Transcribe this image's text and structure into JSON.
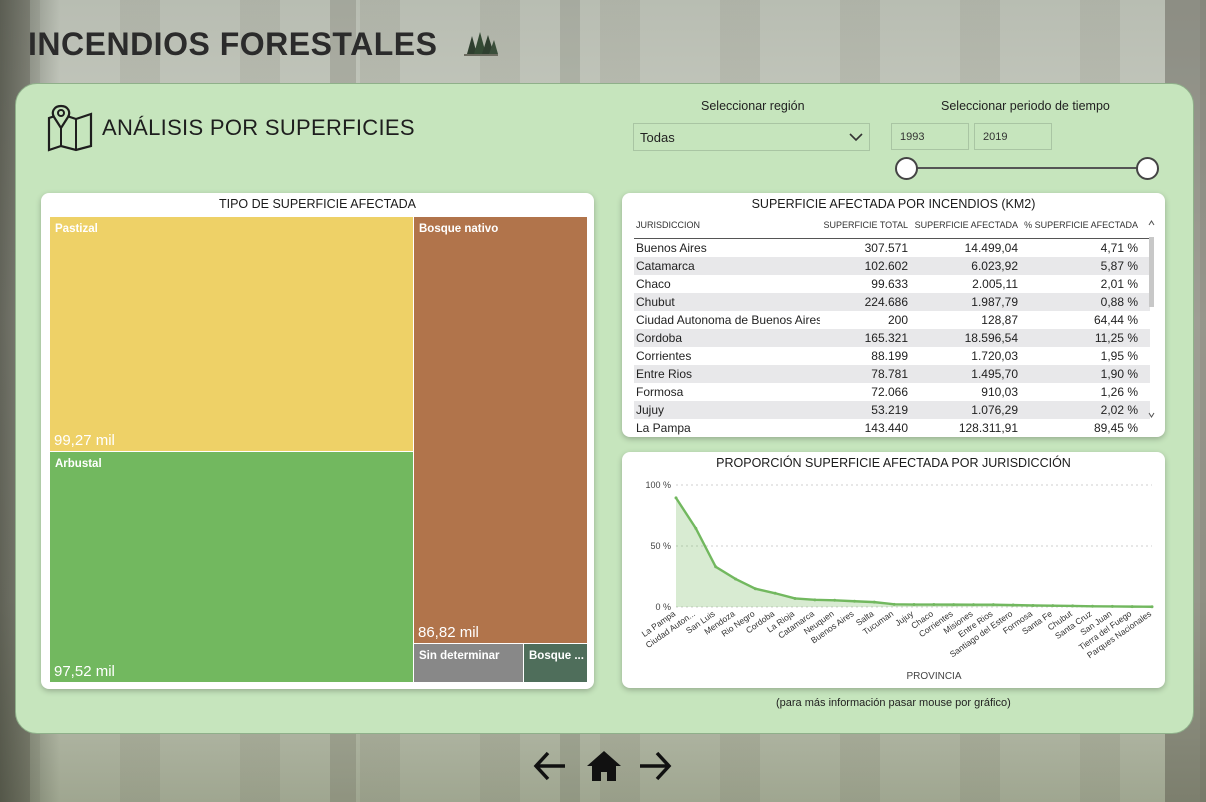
{
  "header": {
    "title": "INCENDIOS FORESTALES",
    "icon": "pine-trees-icon"
  },
  "section": {
    "title": "ANÁLISIS POR SUPERFICIES",
    "icon": "map-pin-icon"
  },
  "filters": {
    "region_label": "Seleccionar región",
    "region_value": "Todas",
    "period_label": "Seleccionar periodo de tiempo",
    "period_start": "1993",
    "period_end": "2019"
  },
  "treemap": {
    "title": "TIPO DE SUPERFICIE AFECTADA",
    "items": [
      {
        "label": "Pastizal",
        "value": "99,27 mil",
        "color": "#eed167"
      },
      {
        "label": "Arbustal",
        "value": "97,52 mil",
        "color": "#72b85f"
      },
      {
        "label": "Bosque nativo",
        "value": "86,82 mil",
        "color": "#b1744b"
      },
      {
        "label": "Sin determinar",
        "value": "",
        "color": "#888888"
      },
      {
        "label": "Bosque ...",
        "value": "",
        "color": "#4f6e5b"
      }
    ]
  },
  "table": {
    "title": "SUPERFICIE AFECTADA POR INCENDIOS (KM2)",
    "columns": [
      "JURISDICCION",
      "SUPERFICIE TOTAL",
      "SUPERFICIE AFECTADA",
      "% SUPERFICIE AFECTADA"
    ],
    "rows": [
      [
        "Buenos Aires",
        "307.571",
        "14.499,04",
        "4,71 %"
      ],
      [
        "Catamarca",
        "102.602",
        "6.023,92",
        "5,87 %"
      ],
      [
        "Chaco",
        "99.633",
        "2.005,11",
        "2,01 %"
      ],
      [
        "Chubut",
        "224.686",
        "1.987,79",
        "0,88 %"
      ],
      [
        "Ciudad Autonoma de Buenos Aires",
        "200",
        "128,87",
        "64,44 %"
      ],
      [
        "Cordoba",
        "165.321",
        "18.596,54",
        "11,25 %"
      ],
      [
        "Corrientes",
        "88.199",
        "1.720,03",
        "1,95 %"
      ],
      [
        "Entre Rios",
        "78.781",
        "1.495,70",
        "1,90 %"
      ],
      [
        "Formosa",
        "72.066",
        "910,03",
        "1,26 %"
      ],
      [
        "Jujuy",
        "53.219",
        "1.076,29",
        "2,02 %"
      ],
      [
        "La Pampa",
        "143.440",
        "128.311,91",
        "89,45 %"
      ]
    ]
  },
  "chart_data": {
    "type": "area",
    "title": "PROPORCIÓN SUPERFICIE AFECTADA POR JURISDICCIÓN",
    "xlabel": "PROVINCIA",
    "ylabel": "",
    "yticks": [
      "100 %",
      "50 %",
      "0 %"
    ],
    "ylim": [
      0,
      100
    ],
    "color": "#72b85f",
    "categories": [
      "La Pampa",
      "Ciudad Auton...",
      "San Luis",
      "Mendoza",
      "Rio Negro",
      "Cordoba",
      "La Rioja",
      "Catamarca",
      "Neuquen",
      "Buenos Aires",
      "Salta",
      "Tucuman",
      "Jujuy",
      "Chaco",
      "Corrientes",
      "Misiones",
      "Entre Rios",
      "Santiago del Estero",
      "Formosa",
      "Santa Fe",
      "Chubut",
      "Santa Cruz",
      "San Juan",
      "Tierra del Fuego",
      "Parques Nacionales"
    ],
    "values": [
      89.45,
      64.44,
      33,
      23,
      15,
      11.25,
      7,
      5.87,
      5.5,
      4.71,
      4,
      2.2,
      2.02,
      2.01,
      1.95,
      1.9,
      1.9,
      1.6,
      1.26,
      1.1,
      0.88,
      0.6,
      0.5,
      0.3,
      0.2
    ]
  },
  "footer": {
    "note": "(para más información pasar mouse por gráfico)"
  },
  "nav": {
    "prev": "arrow-left-icon",
    "home": "home-icon",
    "next": "arrow-right-icon"
  }
}
